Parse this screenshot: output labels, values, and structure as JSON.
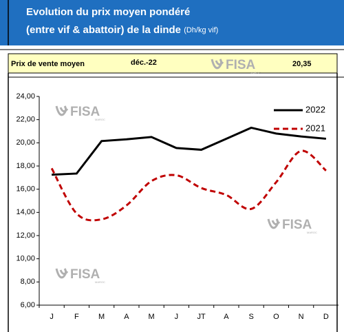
{
  "header": {
    "title": "Evolution du prix moyen pondéré",
    "title_line2": "(entre vif & abattoir) de la dinde",
    "unit": "(Dh/kg vif)"
  },
  "summary": {
    "label": "Prix de vente moyen",
    "period": "déc.-22",
    "value": "20,35"
  },
  "logo": {
    "name": "FISA",
    "sub": "MAROC"
  },
  "chart_data": {
    "type": "line",
    "categories": [
      "J",
      "F",
      "M",
      "A",
      "M",
      "J",
      "JT",
      "A",
      "S",
      "O",
      "N",
      "D"
    ],
    "series": [
      {
        "name": "2022",
        "color": "#000000",
        "style": "solid",
        "values": [
          17.25,
          17.35,
          20.15,
          20.3,
          20.5,
          19.55,
          19.4,
          20.35,
          21.3,
          20.8,
          20.55,
          20.35
        ]
      },
      {
        "name": "2021",
        "color": "#c00000",
        "style": "dashed",
        "smooth": true,
        "values": [
          17.8,
          13.9,
          13.4,
          14.6,
          16.7,
          17.2,
          16.1,
          15.5,
          14.3,
          16.6,
          19.3,
          17.6
        ]
      }
    ],
    "ylim": [
      6,
      24
    ],
    "yticks": [
      {
        "value": 6,
        "label": "6,00"
      },
      {
        "value": 8,
        "label": "8,00"
      },
      {
        "value": 10,
        "label": "10,00"
      },
      {
        "value": 12,
        "label": "12,00"
      },
      {
        "value": 14,
        "label": "14,00"
      },
      {
        "value": 16,
        "label": "16,00"
      },
      {
        "value": 18,
        "label": "18,00"
      },
      {
        "value": 20,
        "label": "20,00"
      },
      {
        "value": 22,
        "label": "22,00"
      },
      {
        "value": 24,
        "label": "24,00"
      }
    ],
    "legend": "top-right"
  }
}
